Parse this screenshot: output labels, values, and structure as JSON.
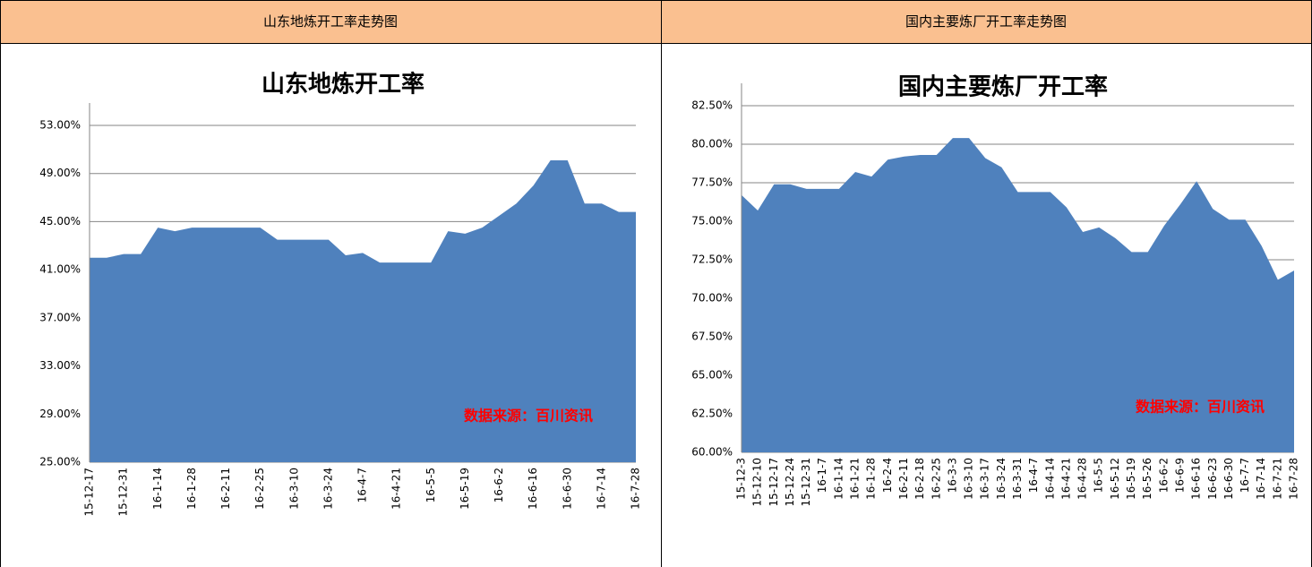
{
  "table": {
    "headers": [
      "山东地炼开工率走势图",
      "国内主要炼厂开工率走势图"
    ]
  },
  "chart_data": [
    {
      "type": "area",
      "title": "山东地炼开工率",
      "annotation": "数据来源：百川资讯",
      "color": "#4f81bd",
      "grid": true,
      "categories": [
        "15-12-17",
        null,
        "15-12-31",
        null,
        "16-1-14",
        null,
        "16-1-28",
        null,
        "16-2-11",
        null,
        "16-2-25",
        null,
        "16-3-10",
        null,
        "16-3-24",
        null,
        "16-4-7",
        null,
        "16-4-21",
        null,
        "16-5-5",
        null,
        "16-5-19",
        null,
        "16-6-2",
        null,
        "16-6-16",
        null,
        "16-6-30",
        null,
        "16-7-14",
        null,
        "16-7-28"
      ],
      "values": [
        42.0,
        42.0,
        42.3,
        42.3,
        44.5,
        44.2,
        44.5,
        44.5,
        44.5,
        44.5,
        44.5,
        43.5,
        43.5,
        43.5,
        43.5,
        42.2,
        42.4,
        41.6,
        41.6,
        41.6,
        41.6,
        44.2,
        44.0,
        44.5,
        45.5,
        46.5,
        48.0,
        50.1,
        50.1,
        46.5,
        46.5,
        45.8,
        45.8
      ],
      "ylim": [
        25,
        53
      ],
      "yticks": [
        {
          "value": 25,
          "label": "25.00%"
        },
        {
          "value": 29,
          "label": "29.00%"
        },
        {
          "value": 33,
          "label": "33.00%"
        },
        {
          "value": 37,
          "label": "37.00%"
        },
        {
          "value": 41,
          "label": "41.00%"
        },
        {
          "value": 45,
          "label": "45.00%"
        },
        {
          "value": 49,
          "label": "49.00%"
        },
        {
          "value": 53,
          "label": "53.00%"
        }
      ]
    },
    {
      "type": "area",
      "title": "国内主要炼厂开工率",
      "annotation": "数据来源：百川资讯",
      "color": "#4f81bd",
      "grid": true,
      "categories": [
        "15-12-3",
        "15-12-10",
        "15-12-17",
        "15-12-24",
        "15-12-31",
        "16-1-7",
        "16-1-14",
        "16-1-21",
        "16-1-28",
        "16-2-4",
        "16-2-11",
        "16-2-18",
        "16-2-25",
        "16-3-3",
        "16-3-10",
        "16-3-17",
        "16-3-24",
        "16-3-31",
        "16-4-7",
        "16-4-14",
        "16-4-21",
        "16-4-28",
        "16-5-5",
        "16-5-12",
        "16-5-19",
        "16-5-26",
        "16-6-2",
        "16-6-9",
        "16-6-16",
        "16-6-23",
        "16-6-30",
        "16-7-7",
        "16-7-14",
        "16-7-21",
        "16-7-28"
      ],
      "values": [
        76.7,
        75.7,
        77.4,
        77.4,
        77.1,
        77.1,
        77.1,
        78.2,
        77.9,
        79.0,
        79.2,
        79.3,
        79.3,
        80.4,
        80.4,
        79.1,
        78.5,
        76.9,
        76.9,
        76.9,
        75.9,
        74.3,
        74.6,
        73.9,
        73.0,
        73.0,
        74.7,
        76.1,
        77.6,
        75.8,
        75.1,
        75.1,
        73.4,
        71.2,
        71.8
      ],
      "ylim": [
        60,
        82.5
      ],
      "yticks": [
        {
          "value": 60,
          "label": "60.00%"
        },
        {
          "value": 62.5,
          "label": "62.50%"
        },
        {
          "value": 65,
          "label": "65.00%"
        },
        {
          "value": 67.5,
          "label": "67.50%"
        },
        {
          "value": 70,
          "label": "70.00%"
        },
        {
          "value": 72.5,
          "label": "72.50%"
        },
        {
          "value": 75,
          "label": "75.00%"
        },
        {
          "value": 77.5,
          "label": "77.50%"
        },
        {
          "value": 80,
          "label": "80.00%"
        },
        {
          "value": 82.5,
          "label": "82.50%"
        }
      ]
    }
  ]
}
